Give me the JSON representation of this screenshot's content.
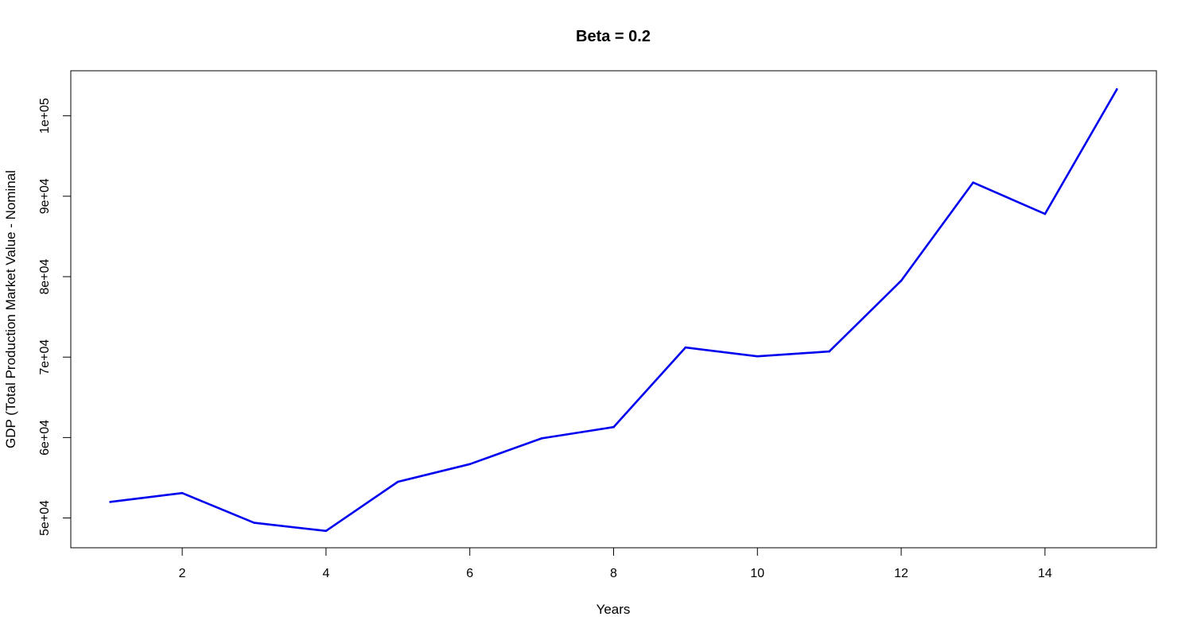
{
  "chart_data": {
    "type": "line",
    "title": "Beta = 0.2",
    "xlabel": "Years",
    "ylabel": "GDP (Total Production Market Value - Nominal",
    "xlim": [
      0.45,
      15.55
    ],
    "ylim": [
      46300,
      105600
    ],
    "x_ticks": [
      2,
      4,
      6,
      8,
      10,
      12,
      14
    ],
    "x_tick_labels": [
      "2",
      "4",
      "6",
      "8",
      "10",
      "12",
      "14"
    ],
    "y_ticks": [
      50000,
      60000,
      70000,
      80000,
      90000,
      100000
    ],
    "y_tick_labels": [
      "5e+04",
      "6e+04",
      "7e+04",
      "8e+04",
      "9e+04",
      "1e+05"
    ],
    "grid": false,
    "legend": "none",
    "series": [
      {
        "color": "#0000ee",
        "x": [
          1,
          2,
          3,
          4,
          5,
          6,
          7,
          8,
          9,
          10,
          11,
          12,
          13,
          14,
          15
        ],
        "values": [
          52000,
          53100,
          49400,
          48400,
          54500,
          56700,
          59900,
          61300,
          71200,
          70100,
          70700,
          79500,
          91700,
          87800,
          103300
        ]
      }
    ]
  }
}
